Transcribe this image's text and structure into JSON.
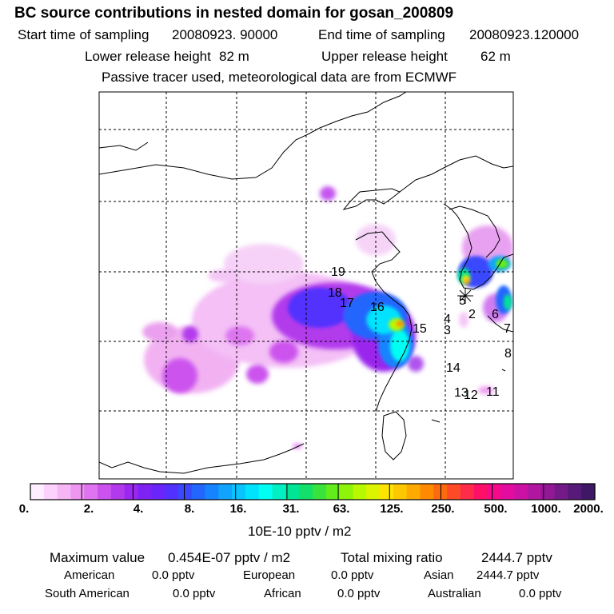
{
  "header": {
    "title": "BC  source contributions in nested domain for gosan_200809",
    "start_label": "Start time of sampling",
    "start_value": "20080923. 90000",
    "end_label": "End time of sampling",
    "end_value": "20080923.120000",
    "lower_label": "Lower release height",
    "lower_value": "82 m",
    "upper_label": "Upper release height",
    "upper_value": "62 m",
    "note": "Passive tracer used, meteorological data are from ECMWF"
  },
  "map": {
    "source_labels": [
      "19",
      "18",
      "17",
      "16",
      "15",
      "4",
      "3",
      "5",
      "2",
      "6",
      "7",
      "8",
      "14",
      "13",
      "12",
      "11"
    ],
    "marker_icon": "star-marker-icon",
    "grid": true
  },
  "colorbar": {
    "tick_labels": [
      "0.",
      "2.",
      "4.",
      "8.",
      "16.",
      "31.",
      "63.",
      "125.",
      "250.",
      "500.",
      "1000.",
      "2000."
    ],
    "units": "10E-10 pptv / m2",
    "colors": [
      "#ffeeff",
      "#fcd2fc",
      "#f6b6f6",
      "#ee96f2",
      "#de74f0",
      "#cc52ee",
      "#b23aec",
      "#9a28ee",
      "#7e22f4",
      "#6a26fa",
      "#5230fe",
      "#3a48fe",
      "#2266fe",
      "#1684fe",
      "#10a4fe",
      "#08c4fe",
      "#00e2fe",
      "#00fef2",
      "#00f0c4",
      "#00e496",
      "#12e06a",
      "#38e43c",
      "#62ec1c",
      "#8ef40a",
      "#b8f800",
      "#dcf400",
      "#fee400",
      "#fec800",
      "#feaa00",
      "#fe8a00",
      "#fe6a0e",
      "#fe4a26",
      "#fe2c48",
      "#fe1068",
      "#f40a8a",
      "#e40c9e",
      "#cc12a4",
      "#b016a0",
      "#921896",
      "#741a88",
      "#561a78",
      "#3e1866"
    ]
  },
  "stats": {
    "max_label": "Maximum value",
    "max_value": "0.454E-07 pptv / m2",
    "total_label": "Total mixing ratio",
    "total_value": "2444.7 pptv",
    "american_label": "American",
    "american_value": "0.0 pptv",
    "european_label": "European",
    "european_value": "0.0 pptv",
    "asian_label": "Asian",
    "asian_value": "2444.7 pptv",
    "south_american_label": "South American",
    "south_american_value": "0.0 pptv",
    "african_label": "African",
    "african_value": "0.0 pptv",
    "australian_label": "Australian",
    "australian_value": "0.0 pptv"
  }
}
